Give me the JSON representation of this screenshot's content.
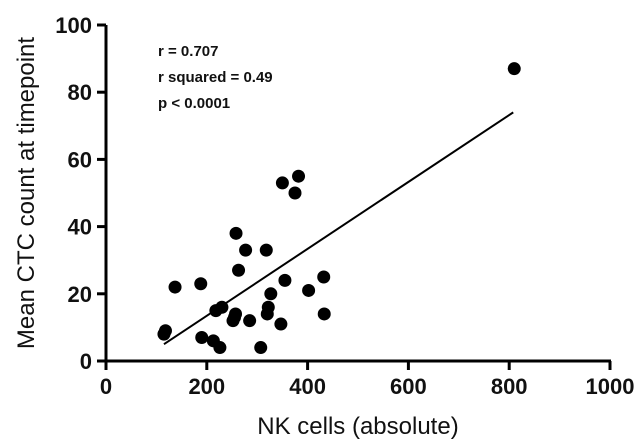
{
  "chart_data": {
    "type": "scatter",
    "title": "",
    "xlabel": "NK cells (absolute)",
    "ylabel": "Mean CTC count at timepoint",
    "xlim": [
      0,
      1000
    ],
    "ylim": [
      0,
      100
    ],
    "x_ticks": [
      "0",
      "200",
      "400",
      "600",
      "800",
      "1000"
    ],
    "y_ticks": [
      "0",
      "20",
      "40",
      "60",
      "80",
      "100"
    ],
    "annotations": [
      "r = 0.707",
      "r squared = 0.49",
      "p < 0.0001"
    ],
    "grid": false,
    "points": [
      {
        "x": 115,
        "y": 8
      },
      {
        "x": 118,
        "y": 9
      },
      {
        "x": 137,
        "y": 22
      },
      {
        "x": 188,
        "y": 23
      },
      {
        "x": 190,
        "y": 7
      },
      {
        "x": 213,
        "y": 6
      },
      {
        "x": 218,
        "y": 15
      },
      {
        "x": 226,
        "y": 4
      },
      {
        "x": 230,
        "y": 16
      },
      {
        "x": 252,
        "y": 12
      },
      {
        "x": 255,
        "y": 13
      },
      {
        "x": 257,
        "y": 14
      },
      {
        "x": 258,
        "y": 38
      },
      {
        "x": 263,
        "y": 27
      },
      {
        "x": 277,
        "y": 33
      },
      {
        "x": 285,
        "y": 12
      },
      {
        "x": 307,
        "y": 4
      },
      {
        "x": 318,
        "y": 33
      },
      {
        "x": 320,
        "y": 14
      },
      {
        "x": 322,
        "y": 16
      },
      {
        "x": 327,
        "y": 20
      },
      {
        "x": 347,
        "y": 11
      },
      {
        "x": 350,
        "y": 53
      },
      {
        "x": 355,
        "y": 24
      },
      {
        "x": 375,
        "y": 50
      },
      {
        "x": 382,
        "y": 55
      },
      {
        "x": 402,
        "y": 21
      },
      {
        "x": 432,
        "y": 25
      },
      {
        "x": 433,
        "y": 14
      },
      {
        "x": 810,
        "y": 87
      }
    ],
    "fit_line": {
      "x": [
        115,
        808
      ],
      "y": [
        5,
        74
      ]
    }
  }
}
